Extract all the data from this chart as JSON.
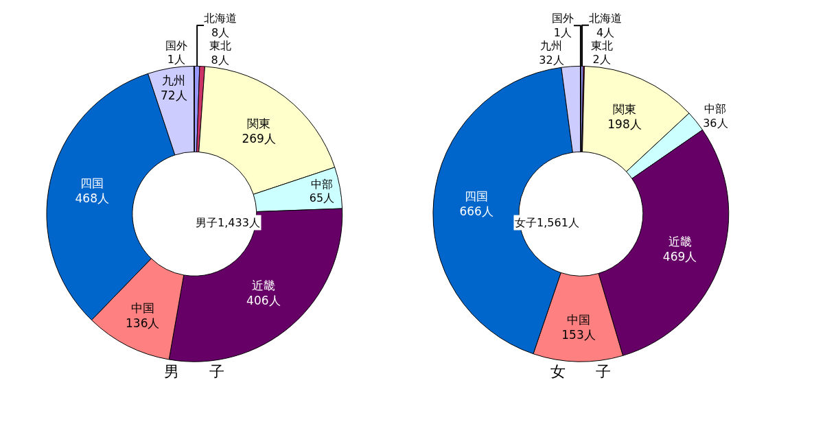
{
  "chart_data": [
    {
      "type": "donut",
      "title": "男　　子",
      "categories": [
        "北海道",
        "東北",
        "関東",
        "中部",
        "近畿",
        "中国",
        "四国",
        "九州",
        "国外"
      ],
      "values": [
        8,
        8,
        269,
        65,
        406,
        136,
        468,
        72,
        1
      ],
      "value_labels": [
        "8人",
        "8人",
        "269人",
        "65人",
        "406人",
        "136人",
        "468人",
        "72人",
        "1人"
      ],
      "colors": [
        "#9999ff",
        "#cc3366",
        "#ffffcc",
        "#ccffff",
        "#660066",
        "#ff8080",
        "#0066cc",
        "#ccccff",
        "#9999ff"
      ],
      "annotations": [
        "男子1,433人"
      ]
    },
    {
      "type": "donut",
      "title": "女　　子",
      "categories": [
        "北海道",
        "東北",
        "関東",
        "中部",
        "近畿",
        "中国",
        "四国",
        "九州",
        "国外"
      ],
      "values": [
        4,
        2,
        198,
        36,
        469,
        153,
        666,
        32,
        1
      ],
      "value_labels": [
        "4人",
        "2人",
        "198人",
        "36人",
        "469人",
        "153人",
        "666人",
        "32人",
        "1人"
      ],
      "colors": [
        "#9999ff",
        "#cc3366",
        "#ffffcc",
        "#ccffff",
        "#660066",
        "#ff8080",
        "#0066cc",
        "#ccccff",
        "#9999ff"
      ],
      "annotations": [
        "女子1,561人"
      ]
    }
  ]
}
